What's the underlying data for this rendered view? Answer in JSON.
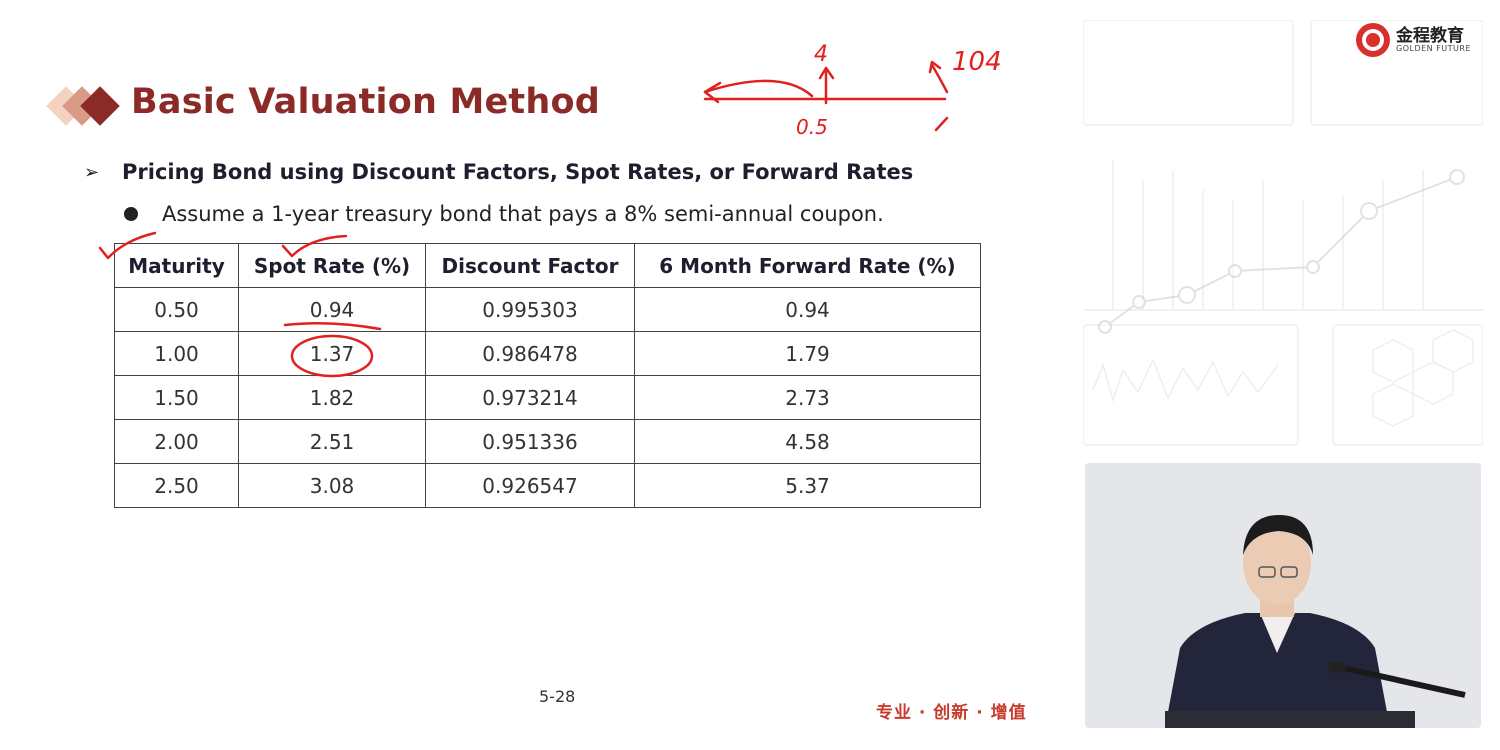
{
  "slide": {
    "title": "Basic Valuation Method",
    "subheading": "Pricing Bond using Discount Factors, Spot Rates, or Forward Rates",
    "bullet": "Assume a 1-year treasury bond that pays a 8% semi-annual coupon.",
    "page_number": "5-28",
    "slogan": "专业 · 创新 · 增值"
  },
  "logo": {
    "cn": "金程教育",
    "en": "GOLDEN FUTURE"
  },
  "table": {
    "headers": [
      "Maturity",
      "Spot Rate (%)",
      "Discount Factor",
      "6 Month Forward Rate (%)"
    ],
    "rows": [
      [
        "0.50",
        "0.94",
        "0.995303",
        "0.94"
      ],
      [
        "1.00",
        "1.37",
        "0.986478",
        "1.79"
      ],
      [
        "1.50",
        "1.82",
        "0.973214",
        "2.73"
      ],
      [
        "2.00",
        "2.51",
        "0.951336",
        "4.58"
      ],
      [
        "2.50",
        "3.08",
        "0.926547",
        "5.37"
      ]
    ]
  },
  "handwriting": {
    "coupon": "4",
    "time_half": "0.5",
    "final_cf": "104",
    "time_one": "1"
  },
  "colors": {
    "title": "#8b2a26",
    "annotation": "#e0211f",
    "slogan": "#c83a2d"
  }
}
